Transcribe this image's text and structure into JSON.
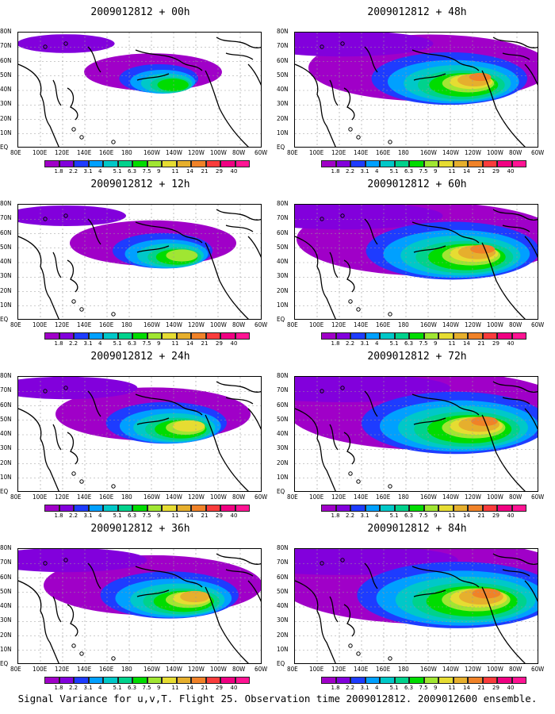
{
  "panels": [
    {
      "title": "2009012812 + 00h",
      "lead": "00h",
      "intensity": 0.18
    },
    {
      "title": "2009012812 + 48h",
      "lead": "48h",
      "intensity": 0.62
    },
    {
      "title": "2009012812 + 12h",
      "lead": "12h",
      "intensity": 0.3
    },
    {
      "title": "2009012812 + 60h",
      "lead": "60h",
      "intensity": 0.72
    },
    {
      "title": "2009012812 + 24h",
      "lead": "24h",
      "intensity": 0.42
    },
    {
      "title": "2009012812 + 72h",
      "lead": "72h",
      "intensity": 0.8
    },
    {
      "title": "2009012812 + 36h",
      "lead": "36h",
      "intensity": 0.52
    },
    {
      "title": "2009012812 + 84h",
      "lead": "84h",
      "intensity": 0.88
    }
  ],
  "lat_labels": [
    "80N",
    "70N",
    "60N",
    "50N",
    "40N",
    "30N",
    "20N",
    "10N",
    "EQ"
  ],
  "lon_labels": [
    "80E",
    "100E",
    "120E",
    "140E",
    "160E",
    "180",
    "160W",
    "140W",
    "120W",
    "100W",
    "80W",
    "60W"
  ],
  "colorbar": {
    "levels": [
      "1.8",
      "2.2",
      "3.1",
      "4",
      "5.1",
      "6.3",
      "7.5",
      "9",
      "11",
      "14",
      "21",
      "29",
      "40"
    ],
    "colors": [
      "#a000c8",
      "#8200dc",
      "#1e3cff",
      "#00a0ff",
      "#00c8c8",
      "#00d28c",
      "#00dc00",
      "#a0e632",
      "#e6dc32",
      "#e6af2d",
      "#f08228",
      "#fa3c3c",
      "#f00082",
      "#ff1493"
    ]
  },
  "caption": "Signal Variance for u,v,T. Flight 25. Observation time 2009012812. 2009012600 ensemble."
}
